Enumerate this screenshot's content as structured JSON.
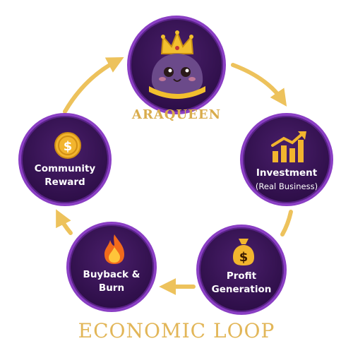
{
  "brand": {
    "name": "ARAQUEEN",
    "colors": {
      "purple": "#2f0f4a",
      "border": "#8a3fc4",
      "gold": "#e2b658",
      "arrow": "#edc25c"
    }
  },
  "nodes": {
    "investment": {
      "line1": "Investment",
      "line2": "(Real Business)",
      "icon": "chart-up-icon"
    },
    "profit": {
      "line1": "Profit",
      "line2": "Generation",
      "icon": "money-bag-icon"
    },
    "buyback": {
      "line1": "Buyback &",
      "line2": "Burn",
      "icon": "fire-icon"
    },
    "community": {
      "line1": "Community",
      "line2": "Reward",
      "icon": "coin-icon"
    },
    "araqueen": {
      "icon": "crowned-mascot-icon"
    }
  },
  "footer": {
    "title": "ECONOMIC LOOP"
  }
}
